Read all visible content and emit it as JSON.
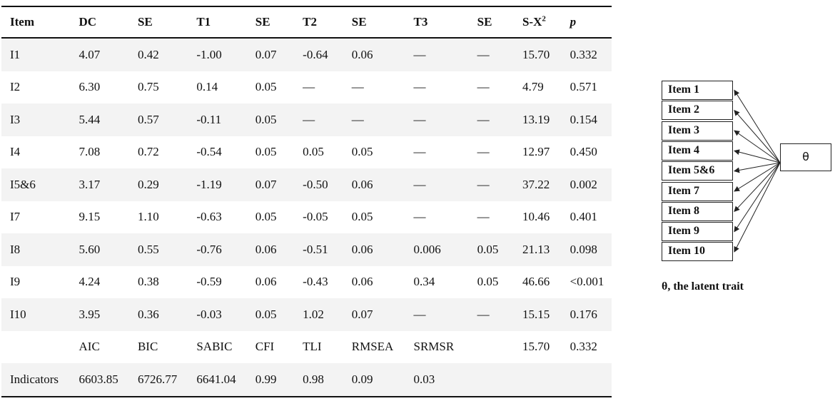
{
  "table": {
    "headers": [
      "Item",
      "DC",
      "SE",
      "T1",
      "SE",
      "T2",
      "SE",
      "T3",
      "SE",
      "S-X",
      "p"
    ],
    "header_superscript": "2",
    "rows": [
      [
        "I1",
        "4.07",
        "0.42",
        "-1.00",
        "0.07",
        "-0.64",
        "0.06",
        "—",
        "—",
        "15.70",
        "0.332"
      ],
      [
        "I2",
        "6.30",
        "0.75",
        "0.14",
        "0.05",
        "—",
        "—",
        "—",
        "—",
        "4.79",
        "0.571"
      ],
      [
        "I3",
        "5.44",
        "0.57",
        "-0.11",
        "0.05",
        "—",
        "—",
        "—",
        "—",
        "13.19",
        "0.154"
      ],
      [
        "I4",
        "7.08",
        "0.72",
        "-0.54",
        "0.05",
        "0.05",
        "0.05",
        "—",
        "—",
        "12.97",
        "0.450"
      ],
      [
        "I5&6",
        "3.17",
        "0.29",
        "-1.19",
        "0.07",
        "-0.50",
        "0.06",
        "—",
        "—",
        "37.22",
        "0.002"
      ],
      [
        "I7",
        "9.15",
        "1.10",
        "-0.63",
        "0.05",
        "-0.05",
        "0.05",
        "—",
        "—",
        "10.46",
        "0.401"
      ],
      [
        "I8",
        "5.60",
        "0.55",
        "-0.76",
        "0.06",
        "-0.51",
        "0.06",
        "0.006",
        "0.05",
        "21.13",
        "0.098"
      ],
      [
        "I9",
        "4.24",
        "0.38",
        "-0.59",
        "0.06",
        "-0.43",
        "0.06",
        "0.34",
        "0.05",
        "46.66",
        "<0.001"
      ],
      [
        "I10",
        "3.95",
        "0.36",
        "-0.03",
        "0.05",
        "1.02",
        "0.07",
        "—",
        "—",
        "15.15",
        "0.176"
      ],
      [
        "",
        "AIC",
        "BIC",
        "SABIC",
        "CFI",
        "TLI",
        "RMSEA",
        "SRMSR",
        "",
        "15.70",
        "0.332"
      ],
      [
        "Indicators",
        "6603.85",
        "6726.77",
        "6641.04",
        "0.99",
        "0.98",
        "0.09",
        "0.03",
        "",
        "",
        ""
      ]
    ]
  },
  "diagram": {
    "items": [
      "Item 1",
      "Item 2",
      "Item 3",
      "Item 4",
      "Item 5&6",
      "Item 7",
      "Item 8",
      "Item 9",
      "Item 10"
    ],
    "latent": "θ",
    "caption": "θ, the latent trait"
  }
}
